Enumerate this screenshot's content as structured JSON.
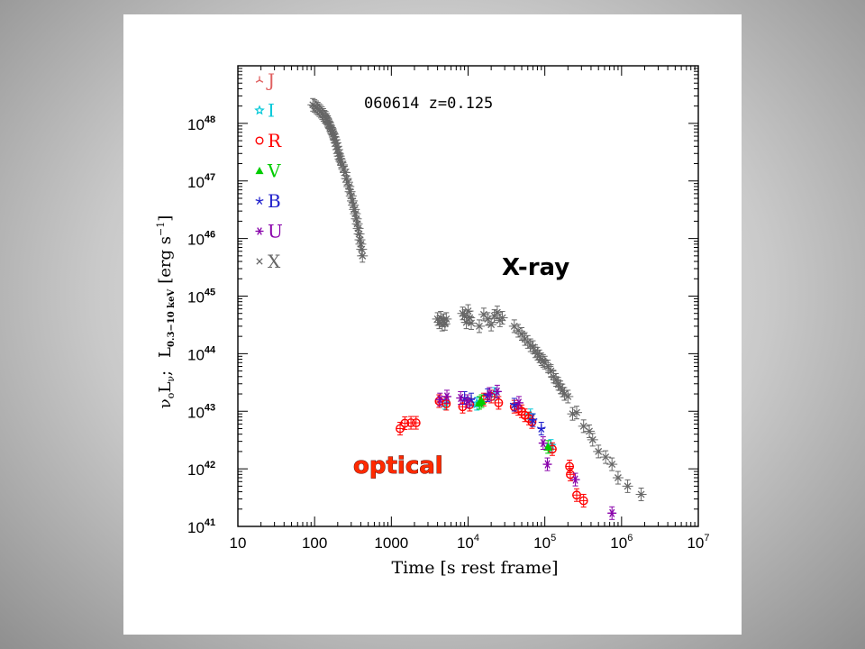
{
  "chart_data": {
    "type": "scatter",
    "title": "060614 z=0.125",
    "xlabel": "Time [s rest frame]",
    "ylabel": "ν₀Lν₀;  L0.3−10 keV [erg s⁻¹]",
    "ylabel_parts": {
      "main": "ν",
      "sub_o": "o",
      "L": "L",
      "nu_o": "ν",
      "semicolon": ";",
      "L2": "L",
      "band": "0.3−10 keV",
      "units": "[erg s",
      "units_exp": "−1",
      "units_close": "]"
    },
    "x_scale": "log",
    "y_scale": "log",
    "xlim": [
      10,
      10000000
    ],
    "ylim": [
      1e+41,
      1e+49
    ],
    "x_ticks": [
      {
        "value": 10,
        "label": "10"
      },
      {
        "value": 100,
        "label": "100"
      },
      {
        "value": 1000,
        "label": "1000"
      },
      {
        "value": 10000,
        "label": "10",
        "exp": "4"
      },
      {
        "value": 100000,
        "label": "10",
        "exp": "5"
      },
      {
        "value": 1000000,
        "label": "10",
        "exp": "6"
      },
      {
        "value": 10000000,
        "label": "10",
        "exp": "7"
      }
    ],
    "y_ticks": [
      {
        "value": 1e+41,
        "label": "10",
        "exp": "41"
      },
      {
        "value": 1e+42,
        "label": "10",
        "exp": "42"
      },
      {
        "value": 1e+43,
        "label": "10",
        "exp": "43"
      },
      {
        "value": 1e+44,
        "label": "10",
        "exp": "44"
      },
      {
        "value": 1e+45,
        "label": "10",
        "exp": "45"
      },
      {
        "value": 1e+46,
        "label": "10",
        "exp": "46"
      },
      {
        "value": 1e+47,
        "label": "10",
        "exp": "47"
      },
      {
        "value": 1e+48,
        "label": "10",
        "exp": "48"
      }
    ],
    "legend_placement": "top-left",
    "annotations": [
      {
        "text": "X-ray",
        "near": "upper-right"
      },
      {
        "text": "optical",
        "near": "lower-left"
      }
    ],
    "series": [
      {
        "name": "J",
        "marker": "tri-star",
        "color": "#e06060",
        "points": [
          [
            4200,
            1.5e+43
          ]
        ]
      },
      {
        "name": "I",
        "marker": "open-star",
        "color": "#00c8d8",
        "points": [
          [
            5000,
            1.4e+43
          ],
          [
            13000,
            1.35e+43
          ],
          [
            22000,
            2e+43
          ],
          [
            65000,
            8.5e+42
          ],
          [
            120000,
            2.5e+42
          ]
        ]
      },
      {
        "name": "R",
        "marker": "open-circle",
        "color": "#ff0000",
        "points": [
          [
            1300,
            5e+42
          ],
          [
            1500,
            6.2e+42
          ],
          [
            1800,
            6.3e+42
          ],
          [
            2100,
            6.3e+42
          ],
          [
            4200,
            1.5e+43
          ],
          [
            5200,
            1.35e+43
          ],
          [
            8500,
            1.2e+43
          ],
          [
            10500,
            1.3e+43
          ],
          [
            16000,
            1.6e+43
          ],
          [
            20000,
            1.8e+43
          ],
          [
            25000,
            1.4e+43
          ],
          [
            40000,
            1.2e+43
          ],
          [
            45000,
            1.1e+43
          ],
          [
            50000,
            1e+43
          ],
          [
            55000,
            8.5e+42
          ],
          [
            62000,
            7.5e+42
          ],
          [
            68000,
            6.5e+42
          ],
          [
            125000,
            2.2e+42
          ],
          [
            210000,
            1.1e+42
          ],
          [
            215000,
            8e+41
          ],
          [
            260000,
            3.5e+41
          ],
          [
            320000,
            2.8e+41
          ]
        ]
      },
      {
        "name": "V",
        "marker": "filled-triangle",
        "color": "#00cc00",
        "points": [
          [
            14000,
            1.4e+43
          ],
          [
            15000,
            1.5e+43
          ],
          [
            110000,
            2.4e+42
          ]
        ]
      },
      {
        "name": "B",
        "marker": "asterisk-5",
        "color": "#2222cc",
        "points": [
          [
            9000,
            1.7e+43
          ],
          [
            11000,
            1.6e+43
          ],
          [
            18000,
            1.9e+43
          ],
          [
            40000,
            1.3e+43
          ],
          [
            70000,
            7e+42
          ],
          [
            90000,
            5e+42
          ]
        ]
      },
      {
        "name": "U",
        "marker": "asterisk-6",
        "color": "#8800aa",
        "points": [
          [
            4300,
            1.6e+43
          ],
          [
            5300,
            1.8e+43
          ],
          [
            8000,
            1.7e+43
          ],
          [
            9800,
            1.5e+43
          ],
          [
            19000,
            2e+43
          ],
          [
            24000,
            2.2e+43
          ],
          [
            46000,
            1.4e+43
          ],
          [
            95000,
            2.8e+42
          ],
          [
            108000,
            1.2e+42
          ],
          [
            250000,
            6.5e+41
          ],
          [
            750000,
            1.7e+41
          ]
        ]
      },
      {
        "name": "X",
        "marker": "cross",
        "color": "#666666",
        "points": [
          [
            95,
            2.1e+48
          ],
          [
            100,
            2e+48
          ],
          [
            105,
            1.9e+48
          ],
          [
            110,
            1.8e+48
          ],
          [
            115,
            1.7e+48
          ],
          [
            120,
            1.6e+48
          ],
          [
            125,
            1.5e+48
          ],
          [
            130,
            1.4e+48
          ],
          [
            135,
            1.3e+48
          ],
          [
            140,
            1.25e+48
          ],
          [
            145,
            1.15e+48
          ],
          [
            150,
            1.05e+48
          ],
          [
            155,
            9.5e+47
          ],
          [
            160,
            8.5e+47
          ],
          [
            165,
            8e+47
          ],
          [
            170,
            7e+47
          ],
          [
            175,
            6.5e+47
          ],
          [
            180,
            5.8e+47
          ],
          [
            185,
            5.2e+47
          ],
          [
            190,
            4.6e+47
          ],
          [
            195,
            4e+47
          ],
          [
            200,
            3.5e+47
          ],
          [
            205,
            3e+47
          ],
          [
            210,
            2.7e+47
          ],
          [
            215,
            2.4e+47
          ],
          [
            220,
            2.2e+47
          ],
          [
            230,
            1.9e+47
          ],
          [
            240,
            1.6e+47
          ],
          [
            250,
            1.4e+47
          ],
          [
            260,
            1.1e+47
          ],
          [
            270,
            9.5e+46
          ],
          [
            280,
            8e+46
          ],
          [
            290,
            6.5e+46
          ],
          [
            300,
            5.5e+46
          ],
          [
            310,
            4.5e+46
          ],
          [
            320,
            3.8e+46
          ],
          [
            330,
            3.2e+46
          ],
          [
            340,
            2.7e+46
          ],
          [
            350,
            2.2e+46
          ],
          [
            360,
            1.8e+46
          ],
          [
            370,
            1.5e+46
          ],
          [
            380,
            1.2e+46
          ],
          [
            390,
            9.5e+45
          ],
          [
            400,
            8e+45
          ],
          [
            410,
            6.5e+45
          ],
          [
            420,
            5e+45
          ],
          [
            4000,
            4e+44
          ],
          [
            4200,
            3.5e+44
          ],
          [
            4400,
            4.2e+44
          ],
          [
            4600,
            3.2e+44
          ],
          [
            4800,
            3.8e+44
          ],
          [
            5000,
            3.3e+44
          ],
          [
            5200,
            4e+44
          ],
          [
            8500,
            5e+44
          ],
          [
            9000,
            4.5e+44
          ],
          [
            9500,
            3.5e+44
          ],
          [
            10000,
            5.5e+44
          ],
          [
            10500,
            4.2e+44
          ],
          [
            11000,
            3.4e+44
          ],
          [
            14000,
            3e+44
          ],
          [
            16000,
            4.8e+44
          ],
          [
            18000,
            4e+44
          ],
          [
            20000,
            3.2e+44
          ],
          [
            22000,
            4.5e+44
          ],
          [
            24000,
            5.2e+44
          ],
          [
            26000,
            3.8e+44
          ],
          [
            28000,
            4.2e+44
          ],
          [
            40000,
            3e+44
          ],
          [
            45000,
            2.5e+44
          ],
          [
            50000,
            2.2e+44
          ],
          [
            55000,
            1.8e+44
          ],
          [
            60000,
            1.6e+44
          ],
          [
            65000,
            1.4e+44
          ],
          [
            70000,
            1.3e+44
          ],
          [
            75000,
            1.1e+44
          ],
          [
            80000,
            1e+44
          ],
          [
            85000,
            9e+43
          ],
          [
            90000,
            8e+43
          ],
          [
            95000,
            7.5e+43
          ],
          [
            100000,
            7e+43
          ],
          [
            110000,
            6e+43
          ],
          [
            120000,
            5e+43
          ],
          [
            130000,
            4e+43
          ],
          [
            140000,
            3.5e+43
          ],
          [
            150000,
            3e+43
          ],
          [
            160000,
            2.6e+43
          ],
          [
            170000,
            2.3e+43
          ],
          [
            180000,
            2e+43
          ],
          [
            200000,
            1.8e+43
          ],
          [
            230000,
            9e+42
          ],
          [
            260000,
            9.5e+42
          ],
          [
            320000,
            5.5e+42
          ],
          [
            380000,
            4.5e+42
          ],
          [
            420000,
            3.2e+42
          ],
          [
            500000,
            2e+42
          ],
          [
            620000,
            1.6e+42
          ],
          [
            750000,
            1.2e+42
          ],
          [
            900000,
            7e+41
          ],
          [
            1200000,
            5e+41
          ],
          [
            1800000,
            3.6e+41
          ]
        ]
      }
    ]
  }
}
